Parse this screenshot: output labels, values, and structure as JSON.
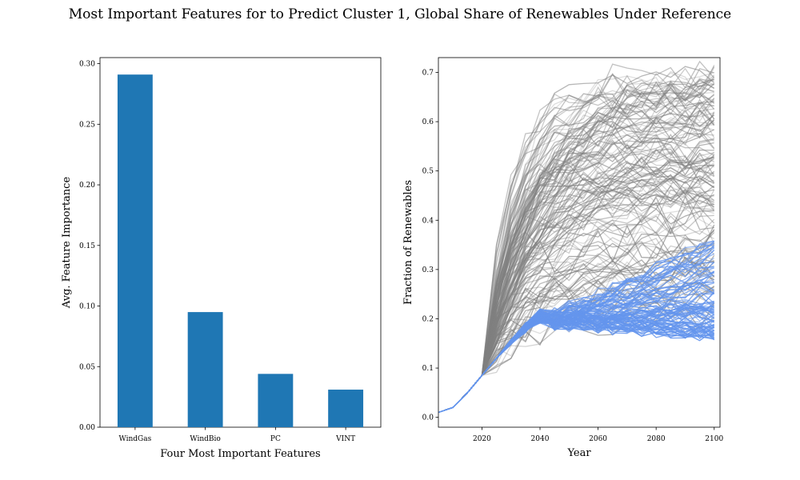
{
  "title": "Most Important Features for to Predict Cluster 1, Global Share of Renewables Under Reference",
  "colors": {
    "bar": "#1f77b4",
    "gray_line": "#808080",
    "cluster_line": "#6495ed"
  },
  "chart_data": [
    {
      "type": "bar",
      "categories": [
        "WindGas",
        "WindBio",
        "PC",
        "VINT"
      ],
      "values": [
        0.291,
        0.095,
        0.044,
        0.031
      ],
      "xlabel": "Four Most Important Features",
      "ylabel": "Avg. Feature Importance",
      "ylim": [
        0,
        0.305
      ],
      "yticks": [
        "0.00",
        "0.05",
        "0.10",
        "0.15",
        "0.20",
        "0.25",
        "0.30"
      ],
      "grid": false
    },
    {
      "type": "line",
      "xlabel": "Year",
      "ylabel": "Fraction of Renewables",
      "xlim": [
        2005,
        2102
      ],
      "ylim": [
        -0.02,
        0.73
      ],
      "xticks": [
        "2020",
        "2040",
        "2060",
        "2080",
        "2100"
      ],
      "yticks": [
        "0.0",
        "0.1",
        "0.2",
        "0.3",
        "0.4",
        "0.5",
        "0.6",
        "0.7"
      ],
      "grid": false,
      "history": {
        "x": [
          2005,
          2010,
          2015,
          2020
        ],
        "y": [
          0.01,
          0.02,
          0.05,
          0.085
        ]
      },
      "series_groups": [
        {
          "group": "other scenarios",
          "color": "#808080",
          "count": 150,
          "plateau_range": [
            0.2,
            0.7
          ],
          "x_range": [
            2020,
            2100
          ]
        },
        {
          "group": "cluster 1",
          "color": "#6495ed",
          "count": 90,
          "plateau_range": [
            0.17,
            0.37
          ],
          "x_range": [
            2020,
            2100
          ]
        }
      ]
    }
  ]
}
